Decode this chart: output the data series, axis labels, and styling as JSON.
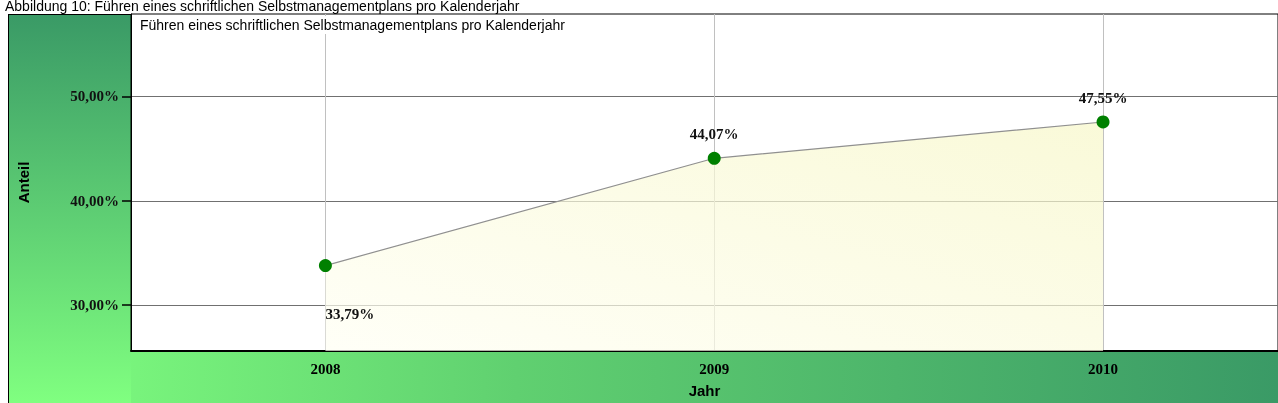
{
  "chart_data": {
    "type": "area",
    "title": "Abbildung 10: Führen eines schriftlichen Selbstmanagementplans pro Kalenderjahr",
    "subtitle": "Führen eines schriftlichen Selbstmanagementplans pro Kalenderjahr",
    "xlabel": "Jahr",
    "ylabel": "Anteil",
    "categories": [
      "2008",
      "2009",
      "2010"
    ],
    "series": [
      {
        "color": "#008000",
        "values": [
          33.79,
          44.07,
          47.55
        ],
        "value_labels": [
          "33,79%",
          "44,07%",
          "47,55%"
        ]
      }
    ],
    "ylim": [
      25.6,
      57.9
    ],
    "yticks": [
      {
        "value": 30,
        "label": "30,00%"
      },
      {
        "value": 40,
        "label": "40,00%"
      },
      {
        "value": 50,
        "label": "50,00%"
      }
    ],
    "grid": true,
    "marker": "circle",
    "line_style": "solid"
  }
}
